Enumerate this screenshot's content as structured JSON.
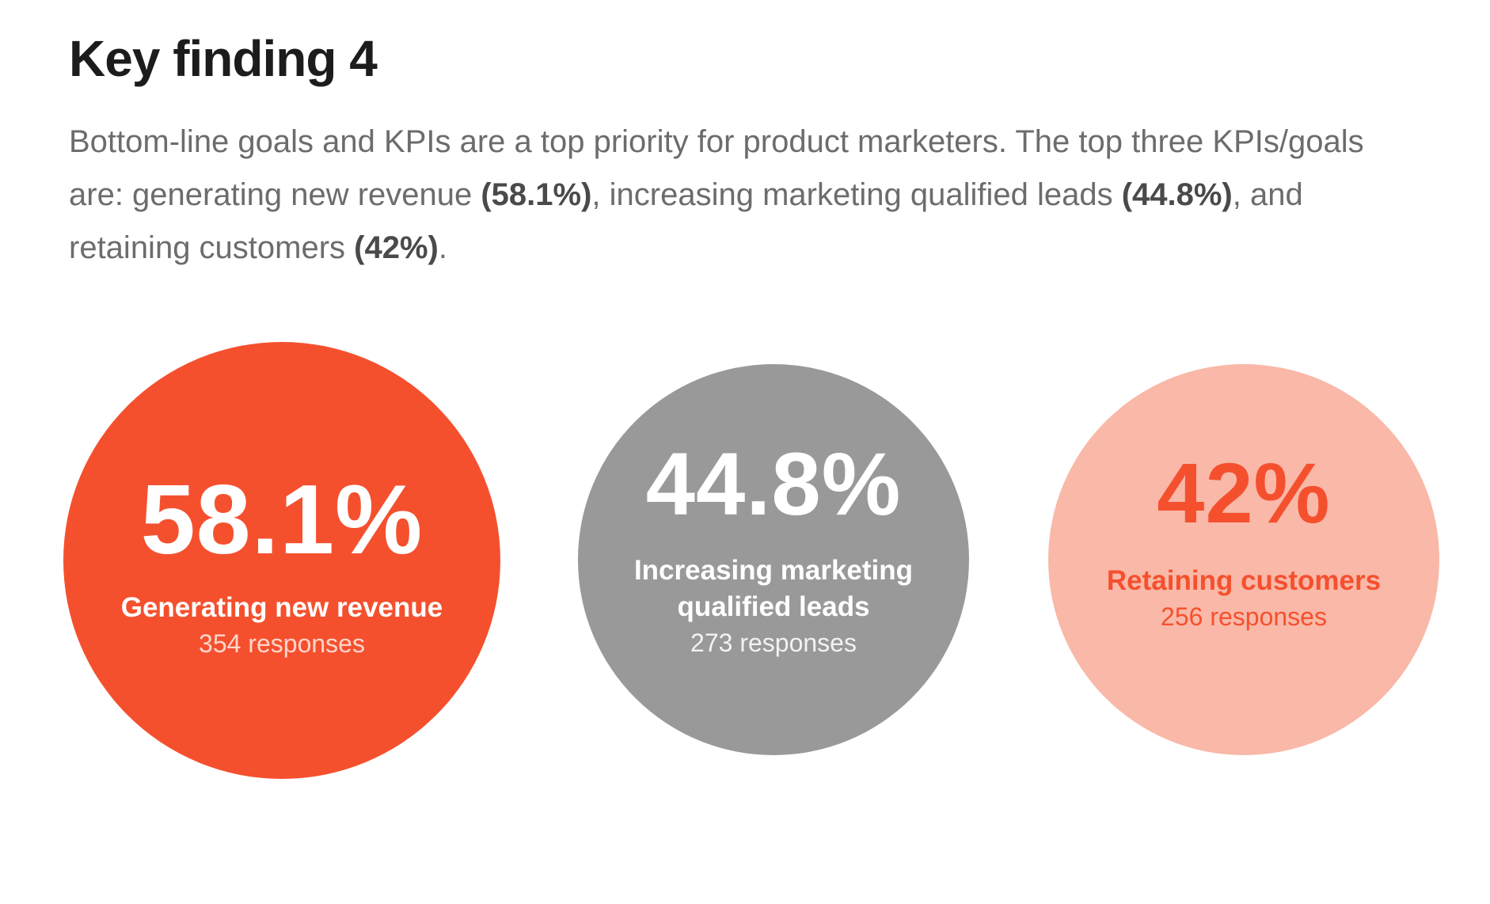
{
  "header": {
    "title": "Key finding 4"
  },
  "intro": {
    "part1": "Bottom-line goals and KPIs are a top priority for product marketers. The top three KPIs/goals are: generating new revenue ",
    "stat1": "(58.1%)",
    "part2": ", increasing marketing qualified leads ",
    "stat2": "(44.8%)",
    "part3": ", and retaining customers ",
    "stat3": "(42%)",
    "part4": "."
  },
  "findings": [
    {
      "percent": "58.1%",
      "label": "Generating new revenue",
      "responses": "354 responses",
      "color": "#f5502e"
    },
    {
      "percent": "44.8%",
      "label": "Increasing marketing qualified leads",
      "responses": "273 responses",
      "color": "#999999"
    },
    {
      "percent": "42%",
      "label": "Retaining customers",
      "responses": "256 responses",
      "color": "#f9b8a8"
    }
  ]
}
